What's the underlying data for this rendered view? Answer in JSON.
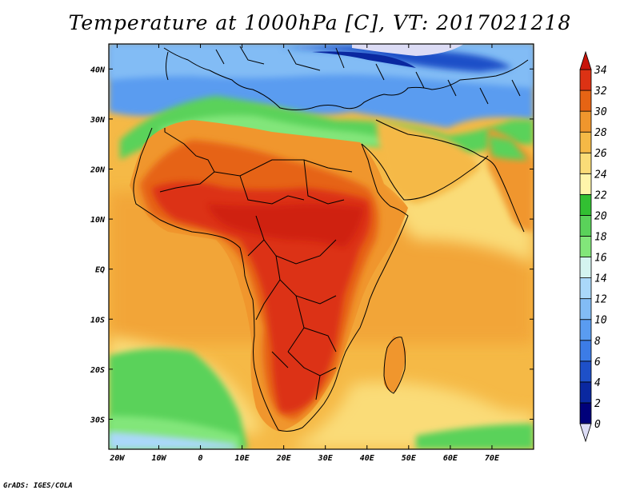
{
  "title": "Temperature at 1000hPa [C], VT: 2017021218",
  "credit": "GrADS: IGES/COLA",
  "map": {
    "lon_range": [
      -22,
      80
    ],
    "lat_range": [
      -36,
      45
    ],
    "lon_ticks": [
      {
        "lon": -20,
        "label": "20W"
      },
      {
        "lon": -10,
        "label": "10W"
      },
      {
        "lon": 0,
        "label": "0"
      },
      {
        "lon": 10,
        "label": "10E"
      },
      {
        "lon": 20,
        "label": "20E"
      },
      {
        "lon": 30,
        "label": "30E"
      },
      {
        "lon": 40,
        "label": "40E"
      },
      {
        "lon": 50,
        "label": "50E"
      },
      {
        "lon": 60,
        "label": "60E"
      },
      {
        "lon": 70,
        "label": "70E"
      }
    ],
    "lat_ticks": [
      {
        "lat": 40,
        "label": "40N"
      },
      {
        "lat": 30,
        "label": "30N"
      },
      {
        "lat": 20,
        "label": "20N"
      },
      {
        "lat": 10,
        "label": "10N"
      },
      {
        "lat": 0,
        "label": "EQ"
      },
      {
        "lat": -10,
        "label": "10S"
      },
      {
        "lat": -20,
        "label": "20S"
      },
      {
        "lat": -30,
        "label": "30S"
      }
    ]
  },
  "colorbar": {
    "labels": [
      "0",
      "2",
      "4",
      "6",
      "8",
      "10",
      "12",
      "14",
      "16",
      "18",
      "20",
      "22",
      "24",
      "26",
      "28",
      "30",
      "32",
      "34"
    ],
    "colors": [
      "#dcdcf5",
      "#00007a",
      "#0a28a0",
      "#1e50c8",
      "#3c7ce6",
      "#5a9cf0",
      "#82bcf5",
      "#aad8fa",
      "#d4f4f0",
      "#82e67a",
      "#5ad25a",
      "#32c032",
      "#fff5aa",
      "#fadc78",
      "#f5b946",
      "#f0962d",
      "#e66414",
      "#dc3214",
      "#c8140a"
    ]
  }
}
